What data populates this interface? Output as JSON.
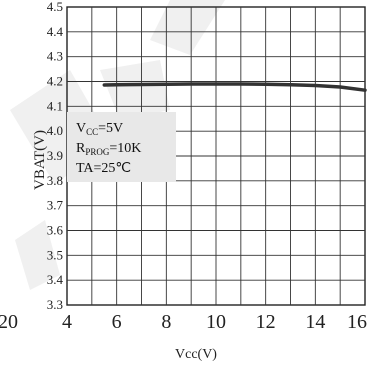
{
  "chart_data": {
    "type": "line",
    "xlabel": "Vcc(V)",
    "ylabel": "VBAT(V)",
    "xlim": [
      4,
      16
    ],
    "ylim": [
      3.3,
      4.5
    ],
    "x_ticks": [
      "4",
      "6",
      "8",
      "10",
      "12",
      "14",
      "16"
    ],
    "y_ticks": [
      "3.3",
      "3.4",
      "3.5",
      "3.6",
      "3.7",
      "3.8",
      "3.9",
      "4.0",
      "4.1",
      "4.2",
      "4.3",
      "4.4",
      "4.5"
    ],
    "grid": true,
    "series": [
      {
        "x": [
          5.5,
          6,
          7,
          8,
          9,
          10,
          11,
          12,
          13,
          14,
          15,
          16
        ],
        "y": [
          4.186,
          4.187,
          4.188,
          4.189,
          4.19,
          4.19,
          4.19,
          4.189,
          4.187,
          4.184,
          4.178,
          4.165
        ]
      }
    ],
    "annotation": [
      "V",
      "CC",
      "=5V",
      "R",
      "PROG",
      "=10K",
      "TA=25℃"
    ],
    "stray_tick": "20"
  }
}
